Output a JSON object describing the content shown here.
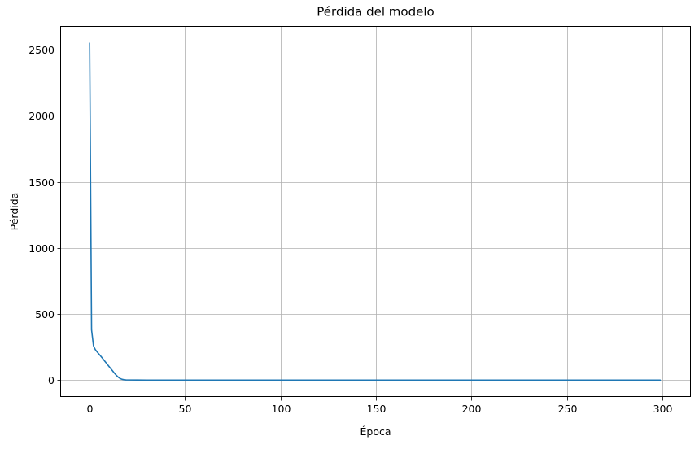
{
  "chart_data": {
    "type": "line",
    "title": "Pérdida del modelo",
    "xlabel": "Época",
    "ylabel": "Pérdida",
    "xlim": [
      -15,
      315
    ],
    "ylim": [
      -127.5,
      2680
    ],
    "xticks": [
      0,
      50,
      100,
      150,
      200,
      250,
      300
    ],
    "yticks": [
      0,
      500,
      1000,
      1500,
      2000,
      2500
    ],
    "grid": true,
    "series": [
      {
        "color": "#1f77b4",
        "points": [
          [
            0,
            2550
          ],
          [
            1,
            380
          ],
          [
            2,
            260
          ],
          [
            3,
            230
          ],
          [
            4,
            212
          ],
          [
            5,
            195
          ],
          [
            6,
            178
          ],
          [
            7,
            160
          ],
          [
            8,
            142
          ],
          [
            9,
            124
          ],
          [
            10,
            106
          ],
          [
            11,
            88
          ],
          [
            12,
            70
          ],
          [
            13,
            52
          ],
          [
            14,
            36
          ],
          [
            15,
            22
          ],
          [
            16,
            12
          ],
          [
            17,
            6
          ],
          [
            18,
            3
          ],
          [
            19,
            1.5
          ],
          [
            20,
            1
          ],
          [
            25,
            0.5
          ],
          [
            30,
            0.3
          ],
          [
            50,
            0.2
          ],
          [
            100,
            0.1
          ],
          [
            150,
            0.1
          ],
          [
            200,
            0.1
          ],
          [
            250,
            0.1
          ],
          [
            299,
            0.1
          ]
        ]
      }
    ]
  }
}
